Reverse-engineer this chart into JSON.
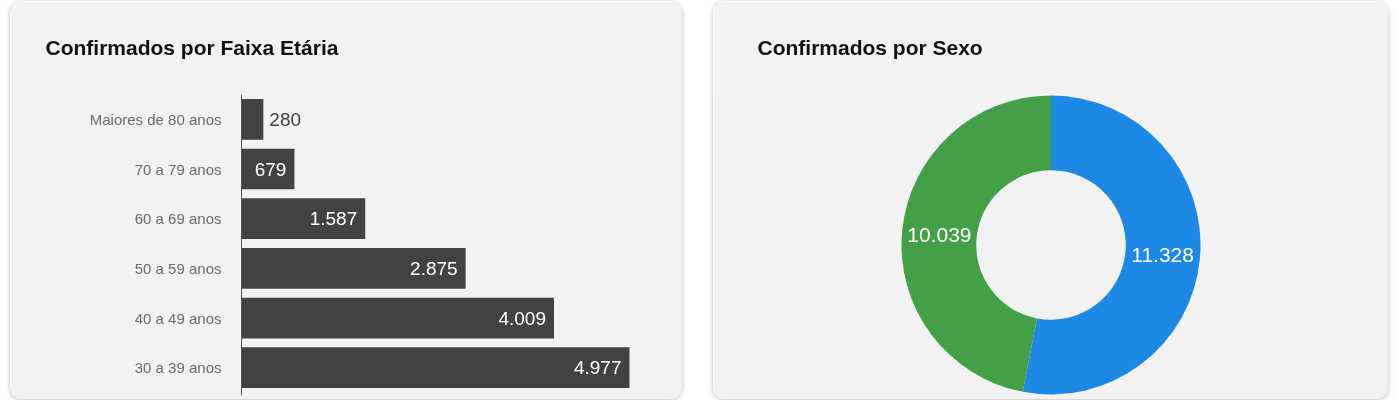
{
  "chart_data": [
    {
      "type": "bar",
      "orientation": "horizontal",
      "title": "Confirmados por Faixa Etária",
      "categories": [
        "Maiores de 80 anos",
        "70 a 79 anos",
        "60 a 69 anos",
        "50 a 59 anos",
        "40 a 49 anos",
        "30 a 39 anos"
      ],
      "values": [
        280,
        679,
        1587,
        2875,
        4009,
        4977
      ],
      "color": "#424242",
      "value_labels": [
        "280",
        "679",
        "1.587",
        "2.875",
        "4.009",
        "4.977"
      ],
      "tick_labels": "y"
    },
    {
      "type": "donut",
      "title": "Confirmados por Sexo",
      "categories": [
        null,
        null
      ],
      "values": [
        11328,
        10039
      ],
      "colors": [
        "#1e88e5",
        "#43a047"
      ],
      "value_labels": [
        "11.328",
        "10.039"
      ]
    }
  ]
}
